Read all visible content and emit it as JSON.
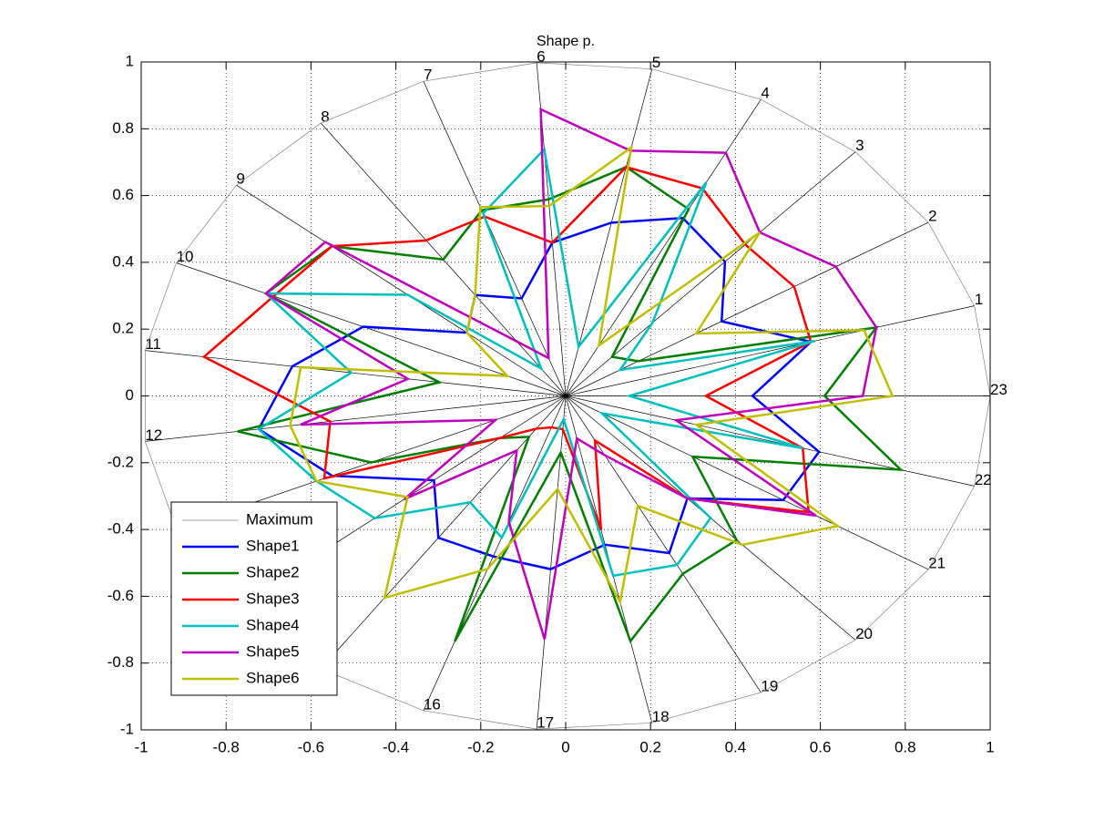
{
  "chart_data": {
    "type": "radar",
    "title": "Shape p.",
    "categories": [
      "1",
      "2",
      "3",
      "4",
      "5",
      "6",
      "7",
      "8",
      "9",
      "10",
      "11",
      "12",
      "13",
      "14",
      "15",
      "16",
      "17",
      "18",
      "19",
      "20",
      "21",
      "22",
      "23"
    ],
    "series": [
      {
        "name": "Maximum",
        "color": "#808080",
        "values": [
          1,
          1,
          1,
          1,
          1,
          1,
          1,
          1,
          1,
          1,
          1,
          1,
          1,
          1,
          1,
          1,
          1,
          1,
          1,
          1,
          1,
          1,
          1
        ]
      },
      {
        "name": "Shape1",
        "color": "#0000ff",
        "values": [
          0.6,
          0.43,
          0.55,
          0.6,
          0.53,
          0.46,
          0.31,
          0.37,
          0.3,
          0.52,
          0.65,
          0.73,
          0.6,
          0.4,
          0.52,
          0.51,
          0.52,
          0.455,
          0.53,
          0.42,
          0.6,
          0.62,
          0.44
        ]
      },
      {
        "name": "Shape2",
        "color": "#007f00",
        "values": [
          0.76,
          0.2,
          0.16,
          0.63,
          0.7,
          0.59,
          0.59,
          0.5,
          0.71,
          0.77,
          0.3,
          0.78,
          0.5,
          0.2,
          0.15,
          0.78,
          0.17,
          0.75,
          0.6,
          0.59,
          0.35,
          0.82,
          0.61
        ]
      },
      {
        "name": "Shape3",
        "color": "#ff0000",
        "values": [
          0.6,
          0.63,
          0.62,
          0.7,
          0.7,
          0.46,
          0.57,
          0.57,
          0.71,
          0.75,
          0.86,
          0.56,
          0.62,
          0.2,
          0.12,
          0.1,
          0.1,
          0.41,
          0.15,
          0.42,
          0.67,
          0.58,
          0.33
        ]
      },
      {
        "name": "Shape4",
        "color": "#00bfbf",
        "values": [
          0.61,
          0.15,
          0.3,
          0.72,
          0.15,
          0.74,
          0.58,
          0.1,
          0.48,
          0.77,
          0.51,
          0.73,
          0.64,
          0.58,
          0.39,
          0.45,
          0.07,
          0.55,
          0.57,
          0.5,
          0.1,
          0.58,
          0.15
        ]
      },
      {
        "name": "Shape5",
        "color": "#bf00bf",
        "values": [
          0.76,
          0.745,
          0.67,
          0.82,
          0.75,
          0.86,
          0.12,
          0.2,
          0.73,
          0.77,
          0.375,
          0.63,
          0.18,
          0.49,
          0.2,
          0.4,
          0.73,
          0.13,
          0.2,
          0.42,
          0.69,
          0.27,
          0.7
        ]
      },
      {
        "name": "Shape6",
        "color": "#bfbf00",
        "values": [
          0.73,
          0.36,
          0.67,
          0.17,
          0.76,
          0.57,
          0.6,
          0.37,
          0.3,
          0.15,
          0.63,
          0.655,
          0.64,
          0.48,
          0.74,
          0.55,
          0.28,
          0.63,
          0.37,
          0.61,
          0.75,
          0.32,
          0.77
        ]
      }
    ],
    "xlim": [
      -1,
      1
    ],
    "ylim": [
      -1,
      1
    ],
    "xticks": [
      -1,
      -0.8,
      -0.6,
      -0.4,
      -0.2,
      0,
      0.2,
      0.4,
      0.6,
      0.8,
      1
    ],
    "yticks": [
      -1,
      -0.8,
      -0.6,
      -0.4,
      -0.2,
      0,
      0.2,
      0.4,
      0.6,
      0.8,
      1
    ],
    "grid": true,
    "legend_loc": "southwest"
  }
}
